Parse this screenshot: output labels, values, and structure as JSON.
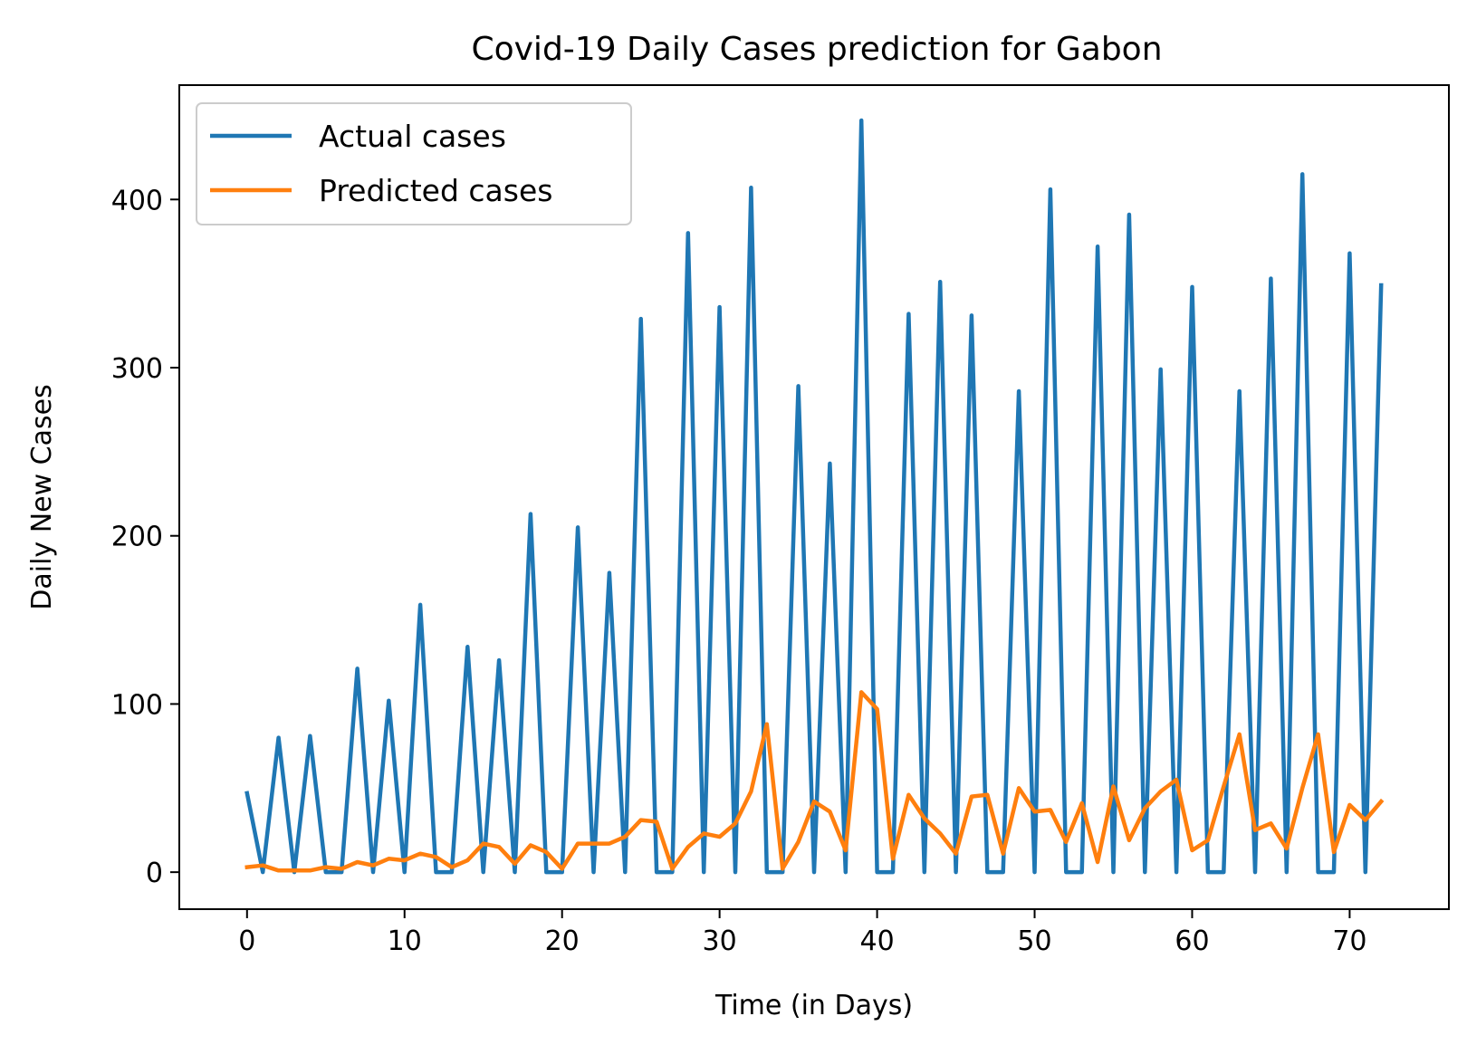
{
  "chart_data": {
    "type": "line",
    "title": "Covid-19 Daily Cases prediction for Gabon",
    "xlabel": "Time (in Days)",
    "ylabel": "Daily New Cases",
    "xlim": [
      -4.3,
      76.3
    ],
    "ylim": [
      -22,
      468
    ],
    "xticks": [
      0,
      10,
      20,
      30,
      40,
      50,
      60,
      70
    ],
    "yticks": [
      0,
      100,
      200,
      300,
      400
    ],
    "grid": false,
    "legend_position": "upper-left",
    "x": [
      0,
      1,
      2,
      3,
      4,
      5,
      6,
      7,
      8,
      9,
      10,
      11,
      12,
      13,
      14,
      15,
      16,
      17,
      18,
      19,
      20,
      21,
      22,
      23,
      24,
      25,
      26,
      27,
      28,
      29,
      30,
      31,
      32,
      33,
      34,
      35,
      36,
      37,
      38,
      39,
      40,
      41,
      42,
      43,
      44,
      45,
      46,
      47,
      48,
      49,
      50,
      51,
      52,
      53,
      54,
      55,
      56,
      57,
      58,
      59,
      60,
      61,
      62,
      63,
      64,
      65,
      66,
      67,
      68,
      69,
      70,
      71,
      72
    ],
    "series": [
      {
        "name": "Actual cases",
        "color": "#1f77b4",
        "values": [
          47,
          0,
          80,
          0,
          81,
          0,
          0,
          121,
          0,
          102,
          0,
          159,
          0,
          0,
          134,
          0,
          126,
          0,
          213,
          0,
          0,
          205,
          0,
          178,
          0,
          329,
          0,
          0,
          380,
          0,
          336,
          0,
          407,
          0,
          0,
          289,
          0,
          243,
          0,
          447,
          0,
          0,
          332,
          0,
          351,
          0,
          331,
          0,
          0,
          286,
          0,
          406,
          0,
          0,
          372,
          0,
          391,
          0,
          299,
          0,
          348,
          0,
          0,
          286,
          0,
          353,
          0,
          415,
          0,
          0,
          368,
          0,
          349
        ]
      },
      {
        "name": "Predicted cases",
        "color": "#ff7f0e",
        "values": [
          3,
          4,
          1,
          1,
          1,
          3,
          2,
          6,
          4,
          8,
          7,
          11,
          9,
          3,
          7,
          17,
          15,
          5,
          16,
          12,
          2,
          17,
          17,
          17,
          21,
          31,
          30,
          2,
          15,
          23,
          21,
          29,
          48,
          88,
          2,
          18,
          42,
          36,
          13,
          107,
          97,
          8,
          46,
          32,
          23,
          11,
          45,
          46,
          11,
          50,
          36,
          37,
          18,
          41,
          6,
          51,
          19,
          38,
          48,
          55,
          13,
          19,
          51,
          82,
          25,
          29,
          14,
          50,
          82,
          12,
          40,
          31,
          42
        ]
      }
    ]
  }
}
